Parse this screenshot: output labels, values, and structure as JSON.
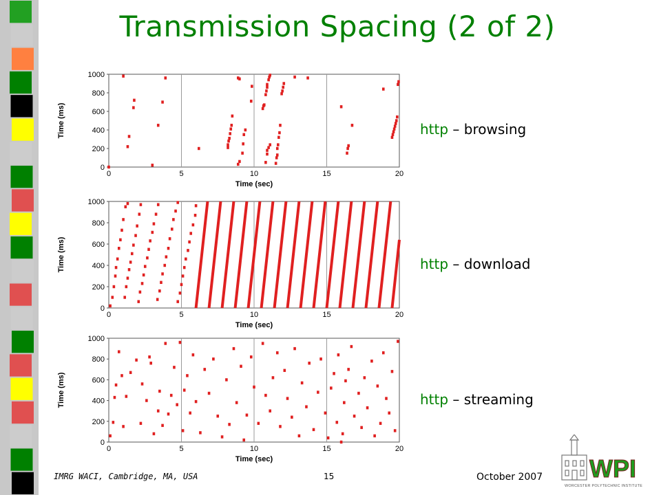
{
  "slide": {
    "title": "Transmission Spacing (2 of 2)",
    "title_color": "#008000",
    "footer_left": "IMRG WACI, Cambridge, MA, USA",
    "page_number": "15",
    "date": "October 2007",
    "logo_text": "WPI",
    "logo_subtext": "WORCESTER POLYTECHNIC INSTITUTE"
  },
  "sidebar": {
    "colors": [
      "#22a022",
      "#cccccc",
      "#ff8040",
      "#008000",
      "#000000",
      "#ffff00",
      "#cccccc",
      "#008000",
      "#e05050",
      "#ffff00",
      "#008000",
      "#cccccc",
      "#e05050",
      "#cccccc",
      "#008000",
      "#e05050",
      "#ffff00",
      "#e05050",
      "#cccccc",
      "#008000",
      "#000000"
    ]
  },
  "labels": [
    {
      "protocol": "http",
      "rest": " – browsing"
    },
    {
      "protocol": "http",
      "rest": " – download"
    },
    {
      "protocol": "http",
      "rest": " – streaming"
    }
  ],
  "chart_data": [
    {
      "type": "scatter",
      "name": "browsing",
      "xlabel": "Time (sec)",
      "ylabel": "Time (ms)",
      "xlim": [
        0,
        20
      ],
      "ylim": [
        0,
        1000
      ],
      "xticks": [
        "0",
        "5",
        "10",
        "15",
        "20"
      ],
      "yticks": [
        "0",
        "200",
        "400",
        "600",
        "800",
        "1000"
      ],
      "grid": true,
      "color": "#e02020",
      "points": [
        [
          0,
          0
        ],
        [
          1.0,
          980
        ],
        [
          1.3,
          220
        ],
        [
          1.4,
          330
        ],
        [
          1.7,
          640
        ],
        [
          1.75,
          720
        ],
        [
          3.0,
          20
        ],
        [
          3.4,
          450
        ],
        [
          3.7,
          700
        ],
        [
          3.9,
          960
        ],
        [
          6.2,
          200
        ],
        [
          8.2,
          210
        ],
        [
          8.2,
          240
        ],
        [
          8.25,
          280
        ],
        [
          8.3,
          310
        ],
        [
          8.35,
          360
        ],
        [
          8.4,
          410
        ],
        [
          8.45,
          450
        ],
        [
          8.5,
          550
        ],
        [
          8.9,
          960
        ],
        [
          9.0,
          950
        ],
        [
          8.9,
          30
        ],
        [
          9.0,
          60
        ],
        [
          9.2,
          150
        ],
        [
          9.25,
          250
        ],
        [
          9.3,
          350
        ],
        [
          9.4,
          400
        ],
        [
          9.8,
          710
        ],
        [
          9.85,
          870
        ],
        [
          10.8,
          50
        ],
        [
          10.9,
          140
        ],
        [
          10.9,
          180
        ],
        [
          11.0,
          210
        ],
        [
          11.1,
          240
        ],
        [
          10.6,
          630
        ],
        [
          10.65,
          660
        ],
        [
          10.7,
          670
        ],
        [
          10.8,
          780
        ],
        [
          10.85,
          820
        ],
        [
          10.9,
          860
        ],
        [
          10.9,
          890
        ],
        [
          11.0,
          940
        ],
        [
          11.05,
          970
        ],
        [
          11.1,
          990
        ],
        [
          11.5,
          40
        ],
        [
          11.55,
          100
        ],
        [
          11.6,
          130
        ],
        [
          11.6,
          200
        ],
        [
          11.65,
          240
        ],
        [
          11.7,
          320
        ],
        [
          11.75,
          370
        ],
        [
          11.8,
          450
        ],
        [
          11.9,
          790
        ],
        [
          11.95,
          820
        ],
        [
          12.0,
          860
        ],
        [
          12.05,
          900
        ],
        [
          12.8,
          970
        ],
        [
          13.7,
          960
        ],
        [
          16.0,
          650
        ],
        [
          16.4,
          150
        ],
        [
          16.45,
          200
        ],
        [
          16.5,
          230
        ],
        [
          16.75,
          450
        ],
        [
          18.9,
          840
        ],
        [
          19.5,
          320
        ],
        [
          19.55,
          350
        ],
        [
          19.6,
          380
        ],
        [
          19.65,
          410
        ],
        [
          19.7,
          440
        ],
        [
          19.75,
          470
        ],
        [
          19.8,
          500
        ],
        [
          19.85,
          540
        ],
        [
          19.9,
          890
        ],
        [
          19.95,
          920
        ]
      ]
    },
    {
      "type": "scatter",
      "name": "download",
      "xlabel": "Time (sec)",
      "ylabel": "Time (ms)",
      "xlim": [
        0,
        20
      ],
      "ylim": [
        0,
        1000
      ],
      "xticks": [
        "0",
        "5",
        "10",
        "15",
        "20"
      ],
      "yticks": [
        "0",
        "200",
        "400",
        "600",
        "800",
        "1000"
      ],
      "grid": true,
      "color": "#e02020",
      "points": [
        [
          0.1,
          20
        ],
        [
          0.25,
          100
        ],
        [
          0.35,
          200
        ],
        [
          0.45,
          300
        ],
        [
          0.5,
          380
        ],
        [
          0.6,
          460
        ],
        [
          0.7,
          560
        ],
        [
          0.8,
          640
        ],
        [
          0.9,
          730
        ],
        [
          1.0,
          830
        ],
        [
          1.15,
          950
        ],
        [
          1.3,
          980
        ],
        [
          1.1,
          100
        ],
        [
          1.2,
          200
        ],
        [
          1.3,
          280
        ],
        [
          1.4,
          360
        ],
        [
          1.5,
          430
        ],
        [
          1.6,
          510
        ],
        [
          1.7,
          590
        ],
        [
          1.85,
          680
        ],
        [
          1.95,
          770
        ],
        [
          2.1,
          880
        ],
        [
          2.2,
          970
        ],
        [
          2.05,
          60
        ],
        [
          2.15,
          150
        ],
        [
          2.3,
          230
        ],
        [
          2.4,
          310
        ],
        [
          2.5,
          390
        ],
        [
          2.65,
          470
        ],
        [
          2.75,
          550
        ],
        [
          2.85,
          630
        ],
        [
          3.0,
          710
        ],
        [
          3.1,
          790
        ],
        [
          3.25,
          880
        ],
        [
          3.4,
          970
        ],
        [
          3.35,
          80
        ],
        [
          3.5,
          160
        ],
        [
          3.6,
          240
        ],
        [
          3.7,
          320
        ],
        [
          3.85,
          400
        ],
        [
          3.95,
          480
        ],
        [
          4.1,
          560
        ],
        [
          4.2,
          650
        ],
        [
          4.35,
          740
        ],
        [
          4.45,
          830
        ],
        [
          4.6,
          910
        ],
        [
          4.75,
          990
        ],
        [
          4.75,
          60
        ],
        [
          4.9,
          140
        ],
        [
          5.0,
          220
        ],
        [
          5.1,
          300
        ],
        [
          5.2,
          380
        ],
        [
          5.3,
          460
        ],
        [
          5.45,
          540
        ],
        [
          5.55,
          620
        ],
        [
          5.65,
          700
        ],
        [
          5.8,
          780
        ],
        [
          5.95,
          870
        ],
        [
          6.0,
          960
        ]
      ],
      "lines": [
        [
          6.0,
          0,
          6.8,
          1000
        ],
        [
          6.9,
          0,
          7.7,
          1000
        ],
        [
          7.8,
          0,
          8.6,
          1000
        ],
        [
          8.7,
          0,
          9.5,
          1000
        ],
        [
          9.6,
          0,
          10.4,
          1000
        ],
        [
          10.5,
          0,
          11.3,
          1000
        ],
        [
          11.4,
          0,
          12.2,
          1000
        ],
        [
          12.3,
          0,
          13.1,
          1000
        ],
        [
          13.2,
          0,
          14.0,
          1000
        ],
        [
          14.1,
          0,
          14.9,
          1000
        ],
        [
          15.0,
          0,
          15.8,
          1000
        ],
        [
          15.9,
          0,
          16.7,
          1000
        ],
        [
          16.8,
          0,
          17.6,
          1000
        ],
        [
          17.7,
          0,
          18.5,
          1000
        ],
        [
          18.6,
          0,
          19.4,
          1000
        ],
        [
          19.5,
          0,
          20.0,
          640
        ]
      ]
    },
    {
      "type": "scatter",
      "name": "streaming",
      "xlabel": "Time (sec)",
      "ylabel": "Time (ms)",
      "xlim": [
        0,
        20
      ],
      "ylim": [
        0,
        1000
      ],
      "xticks": [
        "0",
        "5",
        "10",
        "15",
        "20"
      ],
      "yticks": [
        "0",
        "200",
        "400",
        "600",
        "800",
        "1000"
      ],
      "grid": true,
      "color": "#e02020",
      "points": [
        [
          0.1,
          60
        ],
        [
          0.3,
          190
        ],
        [
          0.4,
          430
        ],
        [
          0.5,
          550
        ],
        [
          0.7,
          870
        ],
        [
          0.9,
          640
        ],
        [
          1.0,
          150
        ],
        [
          1.2,
          440
        ],
        [
          1.5,
          670
        ],
        [
          1.9,
          790
        ],
        [
          2.2,
          180
        ],
        [
          2.3,
          560
        ],
        [
          2.6,
          400
        ],
        [
          2.8,
          820
        ],
        [
          2.9,
          760
        ],
        [
          3.1,
          80
        ],
        [
          3.4,
          300
        ],
        [
          3.5,
          490
        ],
        [
          3.7,
          160
        ],
        [
          3.9,
          950
        ],
        [
          4.1,
          270
        ],
        [
          4.3,
          450
        ],
        [
          4.5,
          720
        ],
        [
          4.7,
          360
        ],
        [
          4.9,
          960
        ],
        [
          5.1,
          110
        ],
        [
          5.2,
          500
        ],
        [
          5.4,
          640
        ],
        [
          5.6,
          280
        ],
        [
          5.8,
          840
        ],
        [
          6.0,
          390
        ],
        [
          6.3,
          90
        ],
        [
          6.6,
          700
        ],
        [
          6.9,
          470
        ],
        [
          7.2,
          800
        ],
        [
          7.5,
          250
        ],
        [
          7.8,
          50
        ],
        [
          8.1,
          600
        ],
        [
          8.3,
          170
        ],
        [
          8.6,
          900
        ],
        [
          8.8,
          380
        ],
        [
          9.1,
          730
        ],
        [
          9.3,
          20
        ],
        [
          9.5,
          260
        ],
        [
          9.8,
          820
        ],
        [
          10.0,
          530
        ],
        [
          10.3,
          180
        ],
        [
          10.6,
          950
        ],
        [
          10.8,
          450
        ],
        [
          11.1,
          300
        ],
        [
          11.3,
          620
        ],
        [
          11.6,
          860
        ],
        [
          11.8,
          150
        ],
        [
          12.1,
          690
        ],
        [
          12.3,
          420
        ],
        [
          12.6,
          240
        ],
        [
          12.8,
          900
        ],
        [
          13.1,
          60
        ],
        [
          13.3,
          570
        ],
        [
          13.6,
          340
        ],
        [
          13.8,
          760
        ],
        [
          14.1,
          120
        ],
        [
          14.4,
          480
        ],
        [
          14.6,
          800
        ],
        [
          14.9,
          280
        ],
        [
          15.1,
          40
        ],
        [
          15.3,
          520
        ],
        [
          15.5,
          660
        ],
        [
          15.7,
          190
        ],
        [
          15.8,
          840
        ],
        [
          16.0,
          0
        ],
        [
          16.1,
          80
        ],
        [
          16.2,
          380
        ],
        [
          16.3,
          590
        ],
        [
          16.5,
          700
        ],
        [
          16.7,
          920
        ],
        [
          16.9,
          250
        ],
        [
          17.2,
          470
        ],
        [
          17.4,
          140
        ],
        [
          17.6,
          620
        ],
        [
          17.8,
          330
        ],
        [
          18.1,
          780
        ],
        [
          18.3,
          60
        ],
        [
          18.5,
          540
        ],
        [
          18.7,
          180
        ],
        [
          18.9,
          860
        ],
        [
          19.1,
          420
        ],
        [
          19.3,
          280
        ],
        [
          19.5,
          680
        ],
        [
          19.7,
          110
        ],
        [
          19.9,
          970
        ]
      ]
    }
  ]
}
